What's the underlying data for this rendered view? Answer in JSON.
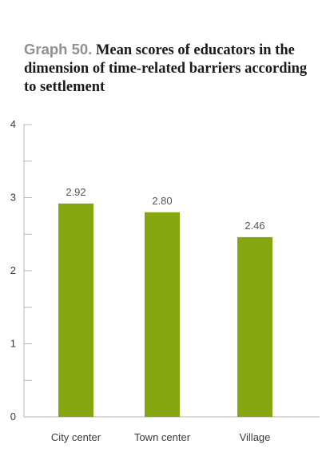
{
  "title": {
    "prefix": "Graph 50.",
    "text": "Mean scores of educators in the dimension of time-related barriers according to settlement"
  },
  "colors": {
    "bar": "#86a611",
    "axis": "#b5b5b5",
    "title_prefix": "#8c9296"
  },
  "chart_data": {
    "type": "bar",
    "title": "Graph 50. Mean scores of educators in the dimension of time-related barriers according to settlement",
    "categories": [
      "City center",
      "Town center",
      "Village"
    ],
    "values": [
      2.92,
      2.8,
      2.46
    ],
    "value_labels": [
      "2.92",
      "2.80",
      "2.46"
    ],
    "xlabel": "",
    "ylabel": "",
    "ylim": [
      0,
      4
    ],
    "yticks": [
      0,
      1,
      2,
      3,
      4
    ],
    "grid": false,
    "legend": "none"
  }
}
